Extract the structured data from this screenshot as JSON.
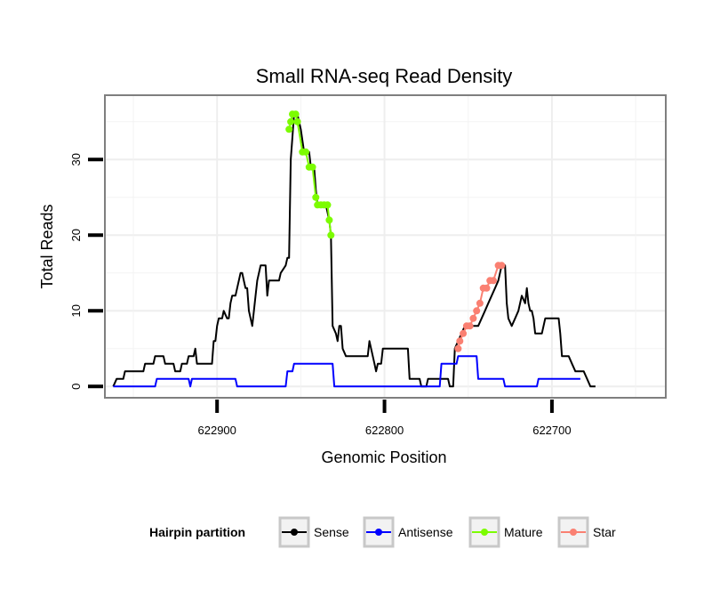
{
  "chart_data": {
    "type": "line",
    "title": "Small RNA-seq Read Density",
    "xlabel": "Genomic Position",
    "ylabel": "Total Reads",
    "x_reversed": true,
    "xlim": [
      622967,
      622632
    ],
    "ylim": [
      -1.5,
      38.5
    ],
    "x_ticks": [
      622900,
      622800,
      622700
    ],
    "x_tick_labels": [
      "622900",
      "622800",
      "622700"
    ],
    "y_ticks": [
      0,
      10,
      20,
      30
    ],
    "y_tick_labels": [
      "0",
      "10",
      "20",
      "30"
    ],
    "grid": true,
    "legend": {
      "title": "Hairpin partition",
      "position": "bottom",
      "entries": [
        {
          "label": "Sense",
          "color": "#000000"
        },
        {
          "label": "Antisense",
          "color": "#0000ff"
        },
        {
          "label": "Mature",
          "color": "#7cfc00"
        },
        {
          "label": "Star",
          "color": "#fa8072"
        }
      ]
    },
    "series": [
      {
        "name": "Sense",
        "color": "#000000",
        "points": [
          [
            622962,
            0
          ],
          [
            622960,
            1
          ],
          [
            622956,
            1
          ],
          [
            622955,
            2
          ],
          [
            622944,
            2
          ],
          [
            622943,
            3
          ],
          [
            622938,
            3
          ],
          [
            622937,
            4
          ],
          [
            622932,
            4
          ],
          [
            622931,
            3
          ],
          [
            622926,
            3
          ],
          [
            622925,
            2
          ],
          [
            622922,
            2
          ],
          [
            622921,
            3
          ],
          [
            622918,
            3
          ],
          [
            622917,
            4
          ],
          [
            622914,
            4
          ],
          [
            622913,
            5
          ],
          [
            622912,
            3
          ],
          [
            622903,
            3
          ],
          [
            622902,
            6
          ],
          [
            622901,
            6
          ],
          [
            622900,
            8
          ],
          [
            622899,
            9
          ],
          [
            622897,
            9
          ],
          [
            622896,
            10
          ],
          [
            622894,
            9
          ],
          [
            622893,
            9
          ],
          [
            622892,
            11
          ],
          [
            622891,
            12
          ],
          [
            622889,
            12
          ],
          [
            622888,
            13
          ],
          [
            622887,
            14
          ],
          [
            622886,
            15
          ],
          [
            622885,
            15
          ],
          [
            622884,
            14
          ],
          [
            622883,
            13
          ],
          [
            622882,
            13
          ],
          [
            622881,
            10
          ],
          [
            622879,
            8
          ],
          [
            622877,
            12
          ],
          [
            622876,
            14
          ],
          [
            622874,
            16
          ],
          [
            622871,
            16
          ],
          [
            622870,
            12
          ],
          [
            622869,
            14
          ],
          [
            622863,
            14
          ],
          [
            622862,
            15
          ],
          [
            622859,
            16
          ],
          [
            622858,
            17
          ],
          [
            622857,
            17
          ],
          [
            622856,
            30
          ],
          [
            622855,
            33
          ],
          [
            622854,
            36
          ],
          [
            622852,
            36
          ],
          [
            622850,
            34
          ],
          [
            622848,
            31
          ],
          [
            622845,
            31
          ],
          [
            622844,
            29
          ],
          [
            622842,
            29
          ],
          [
            622841,
            26
          ],
          [
            622840,
            24
          ],
          [
            622839,
            24
          ],
          [
            622835,
            24
          ],
          [
            622833,
            22
          ],
          [
            622832,
            20
          ],
          [
            622831,
            8
          ],
          [
            622829,
            7
          ],
          [
            622828,
            6
          ],
          [
            622827,
            8
          ],
          [
            622826,
            8
          ],
          [
            622825,
            5
          ],
          [
            622823,
            4
          ],
          [
            622810,
            4
          ],
          [
            622809,
            6
          ],
          [
            622808,
            5
          ],
          [
            622806,
            3
          ],
          [
            622805,
            2
          ],
          [
            622804,
            3
          ],
          [
            622802,
            3
          ],
          [
            622801,
            5
          ],
          [
            622786,
            5
          ],
          [
            622785,
            1
          ],
          [
            622779,
            1
          ],
          [
            622778,
            0
          ],
          [
            622775,
            0
          ],
          [
            622774,
            1
          ],
          [
            622762,
            1
          ],
          [
            622761,
            0
          ],
          [
            622759,
            0
          ],
          [
            622758,
            5
          ],
          [
            622756,
            6
          ],
          [
            622754,
            7
          ],
          [
            622752,
            8
          ],
          [
            622744,
            8
          ],
          [
            622742,
            9
          ],
          [
            622740,
            10
          ],
          [
            622738,
            11
          ],
          [
            622736,
            12
          ],
          [
            622734,
            13
          ],
          [
            622732,
            14
          ],
          [
            622730,
            16
          ],
          [
            622728,
            16
          ],
          [
            622727,
            11
          ],
          [
            622726,
            9
          ],
          [
            622724,
            8
          ],
          [
            622722,
            9
          ],
          [
            622720,
            10
          ],
          [
            622718,
            12
          ],
          [
            622716,
            11
          ],
          [
            622715,
            13
          ],
          [
            622714,
            11
          ],
          [
            622713,
            10
          ],
          [
            622712,
            10
          ],
          [
            622711,
            9
          ],
          [
            622710,
            7
          ],
          [
            622706,
            7
          ],
          [
            622705,
            8
          ],
          [
            622704,
            9
          ],
          [
            622696,
            9
          ],
          [
            622695,
            7
          ],
          [
            622694,
            4
          ],
          [
            622690,
            4
          ],
          [
            622688,
            3
          ],
          [
            622686,
            2
          ],
          [
            622681,
            2
          ],
          [
            622679,
            1
          ],
          [
            622677,
            0
          ],
          [
            622674,
            0
          ]
        ]
      },
      {
        "name": "Antisense",
        "color": "#0000ff",
        "points": [
          [
            622962,
            0
          ],
          [
            622937,
            0
          ],
          [
            622936,
            1
          ],
          [
            622917,
            1
          ],
          [
            622916,
            0
          ],
          [
            622915,
            1
          ],
          [
            622889,
            1
          ],
          [
            622888,
            0
          ],
          [
            622859,
            0
          ],
          [
            622858,
            2
          ],
          [
            622855,
            2
          ],
          [
            622854,
            3
          ],
          [
            622831,
            3
          ],
          [
            622830,
            0
          ],
          [
            622767,
            0
          ],
          [
            622766,
            3
          ],
          [
            622757,
            3
          ],
          [
            622756,
            4
          ],
          [
            622745,
            4
          ],
          [
            622744,
            1
          ],
          [
            622729,
            1
          ],
          [
            622728,
            0
          ],
          [
            622709,
            0
          ],
          [
            622708,
            1
          ],
          [
            622683,
            1
          ]
        ]
      },
      {
        "name": "Mature",
        "color": "#7cfc00",
        "points": [
          [
            622857,
            34
          ],
          [
            622856,
            35
          ],
          [
            622855,
            36
          ],
          [
            622853,
            36
          ],
          [
            622852,
            35
          ],
          [
            622849,
            31
          ],
          [
            622847,
            31
          ],
          [
            622845,
            29
          ],
          [
            622843,
            29
          ],
          [
            622841,
            25
          ],
          [
            622840,
            24
          ],
          [
            622838,
            24
          ],
          [
            622836,
            24
          ],
          [
            622834,
            24
          ],
          [
            622833,
            22
          ],
          [
            622832,
            20
          ]
        ]
      },
      {
        "name": "Star",
        "color": "#fa8072",
        "points": [
          [
            622756,
            5
          ],
          [
            622755,
            6
          ],
          [
            622753,
            7
          ],
          [
            622751,
            8
          ],
          [
            622749,
            8
          ],
          [
            622747,
            9
          ],
          [
            622745,
            10
          ],
          [
            622743,
            11
          ],
          [
            622741,
            13
          ],
          [
            622739,
            13
          ],
          [
            622737,
            14
          ],
          [
            622735,
            14
          ],
          [
            622732,
            16
          ],
          [
            622730,
            16
          ]
        ]
      }
    ]
  }
}
